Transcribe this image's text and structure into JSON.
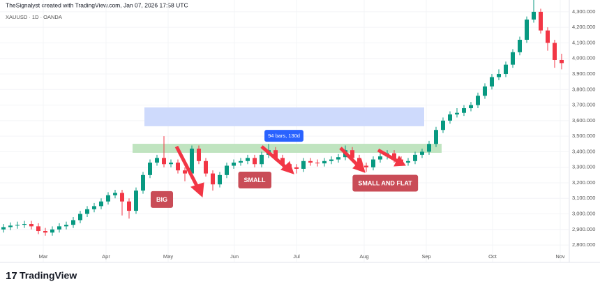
{
  "header": {
    "credit": "TheSignalyst created with TradingView.com, Jan 07, 2026 17:58 UTC",
    "symbol": "XAUUSD · 1D · OANDA"
  },
  "footer": {
    "brand": "TradingView"
  },
  "chart_data": {
    "type": "candlestick",
    "up_color": "#089981",
    "down_color": "#f23645",
    "xlim": [
      -0.5,
      81
    ],
    "ylim": [
      2760,
      4322
    ],
    "xticks": [
      {
        "value": 5.7,
        "label": "Mar"
      },
      {
        "value": 14.7,
        "label": "Apr"
      },
      {
        "value": 23.6,
        "label": "May"
      },
      {
        "value": 33.1,
        "label": "Jun"
      },
      {
        "value": 42,
        "label": "Jul"
      },
      {
        "value": 51.7,
        "label": "Aug"
      },
      {
        "value": 60.6,
        "label": "Sep"
      },
      {
        "value": 70.1,
        "label": "Oct"
      },
      {
        "value": 79.8,
        "label": "Nov"
      }
    ],
    "yticks": [
      {
        "value": 2800,
        "label": "2,800.000"
      },
      {
        "value": 2900,
        "label": "2,900.000"
      },
      {
        "value": 3000,
        "label": "3,000.000"
      },
      {
        "value": 3100,
        "label": "3,100.000"
      },
      {
        "value": 3200,
        "label": "3,200.000"
      },
      {
        "value": 3300,
        "label": "3,300.000"
      },
      {
        "value": 3400,
        "label": "3,400.000"
      },
      {
        "value": 3500,
        "label": "3,500.000"
      },
      {
        "value": 3600,
        "label": "3,600.000"
      },
      {
        "value": 3700,
        "label": "3,700.000"
      },
      {
        "value": 3800,
        "label": "3,800.000"
      },
      {
        "value": 3900,
        "label": "3,900.000"
      },
      {
        "value": 4000,
        "label": "4,000.000"
      },
      {
        "value": 4100,
        "label": "4,100.000"
      },
      {
        "value": 4200,
        "label": "4,200.000"
      },
      {
        "value": 4300,
        "label": "4,300.000"
      }
    ],
    "open": [
      2900,
      2915,
      2925,
      2930,
      2935,
      2920,
      2890,
      2880,
      2900,
      2920,
      2930,
      2960,
      3000,
      3030,
      3050,
      3080,
      3120,
      3135,
      3080,
      3020,
      3150,
      3250,
      3330,
      3360,
      3320,
      3330,
      3280,
      3260,
      3420,
      3340,
      3260,
      3190,
      3250,
      3310,
      3330,
      3340,
      3360,
      3320,
      3380,
      3410,
      3360,
      3320,
      3300,
      3290,
      3340,
      3330,
      3325,
      3340,
      3350,
      3365,
      3410,
      3360,
      3310,
      3300,
      3350,
      3370,
      3390,
      3350,
      3330,
      3340,
      3380,
      3400,
      3450,
      3540,
      3600,
      3640,
      3650,
      3680,
      3700,
      3760,
      3820,
      3880,
      3900,
      3960,
      4040,
      4120,
      4250,
      4300,
      4180,
      4100,
      3990
    ],
    "high": [
      2935,
      2945,
      2950,
      2955,
      2955,
      2940,
      2910,
      2920,
      2940,
      2950,
      2980,
      3020,
      3050,
      3070,
      3100,
      3140,
      3155,
      3155,
      3100,
      3170,
      3270,
      3350,
      3380,
      3500,
      3350,
      3350,
      3300,
      3440,
      3440,
      3360,
      3280,
      3270,
      3330,
      3350,
      3360,
      3380,
      3380,
      3400,
      3450,
      3430,
      3380,
      3340,
      3320,
      3360,
      3360,
      3350,
      3360,
      3370,
      3385,
      3440,
      3430,
      3380,
      3330,
      3370,
      3390,
      3410,
      3410,
      3370,
      3360,
      3400,
      3420,
      3470,
      3560,
      3620,
      3660,
      3680,
      3700,
      3720,
      3780,
      3840,
      3900,
      3930,
      3980,
      4060,
      4140,
      4270,
      4380,
      4320,
      4200,
      4120,
      4030
    ],
    "low": [
      2880,
      2895,
      2905,
      2910,
      2900,
      2870,
      2860,
      2860,
      2880,
      2900,
      2910,
      2940,
      2980,
      3010,
      3030,
      3060,
      3100,
      2990,
      2970,
      3000,
      3130,
      3230,
      3310,
      3300,
      3300,
      3260,
      3210,
      3240,
      3320,
      3240,
      3150,
      3170,
      3230,
      3290,
      3310,
      3320,
      3300,
      3300,
      3360,
      3340,
      3300,
      3280,
      3260,
      3270,
      3310,
      3305,
      3305,
      3320,
      3330,
      3345,
      3340,
      3290,
      3270,
      3280,
      3330,
      3350,
      3330,
      3310,
      3310,
      3320,
      3360,
      3380,
      3430,
      3520,
      3580,
      3620,
      3630,
      3660,
      3680,
      3740,
      3800,
      3860,
      3880,
      3940,
      4020,
      4100,
      4230,
      4160,
      4050,
      3940,
      3930
    ],
    "close": [
      2915,
      2925,
      2930,
      2935,
      2920,
      2890,
      2880,
      2900,
      2920,
      2930,
      2960,
      3000,
      3030,
      3050,
      3080,
      3120,
      3135,
      3080,
      3020,
      3150,
      3250,
      3330,
      3360,
      3320,
      3330,
      3280,
      3260,
      3420,
      3340,
      3260,
      3190,
      3250,
      3310,
      3330,
      3340,
      3360,
      3320,
      3380,
      3410,
      3360,
      3320,
      3300,
      3290,
      3340,
      3330,
      3325,
      3340,
      3350,
      3365,
      3410,
      3360,
      3310,
      3300,
      3350,
      3370,
      3390,
      3350,
      3330,
      3340,
      3380,
      3400,
      3450,
      3540,
      3600,
      3640,
      3650,
      3680,
      3700,
      3760,
      3820,
      3880,
      3900,
      3960,
      4040,
      4120,
      4250,
      4300,
      4180,
      4100,
      3990,
      3970
    ],
    "zones": [
      {
        "color": "#c5d3fb",
        "x": [
          20.2,
          60.3
        ],
        "y": [
          3564,
          3685
        ]
      },
      {
        "color": "#b5dfb5",
        "x": [
          18.5,
          62.8
        ],
        "y": [
          3393,
          3451
        ]
      }
    ],
    "annotations": [
      {
        "text": "94 bars, 130d",
        "style": "badge",
        "x": 40.2,
        "y": 3500
      },
      {
        "text": "BIG",
        "style": "note",
        "x": 22.7,
        "y": 3090
      },
      {
        "text": "SMALL",
        "style": "note",
        "x": 36,
        "y": 3215
      },
      {
        "text": "SMALL AND FLAT",
        "style": "note",
        "x": 54.7,
        "y": 3195
      }
    ]
  }
}
